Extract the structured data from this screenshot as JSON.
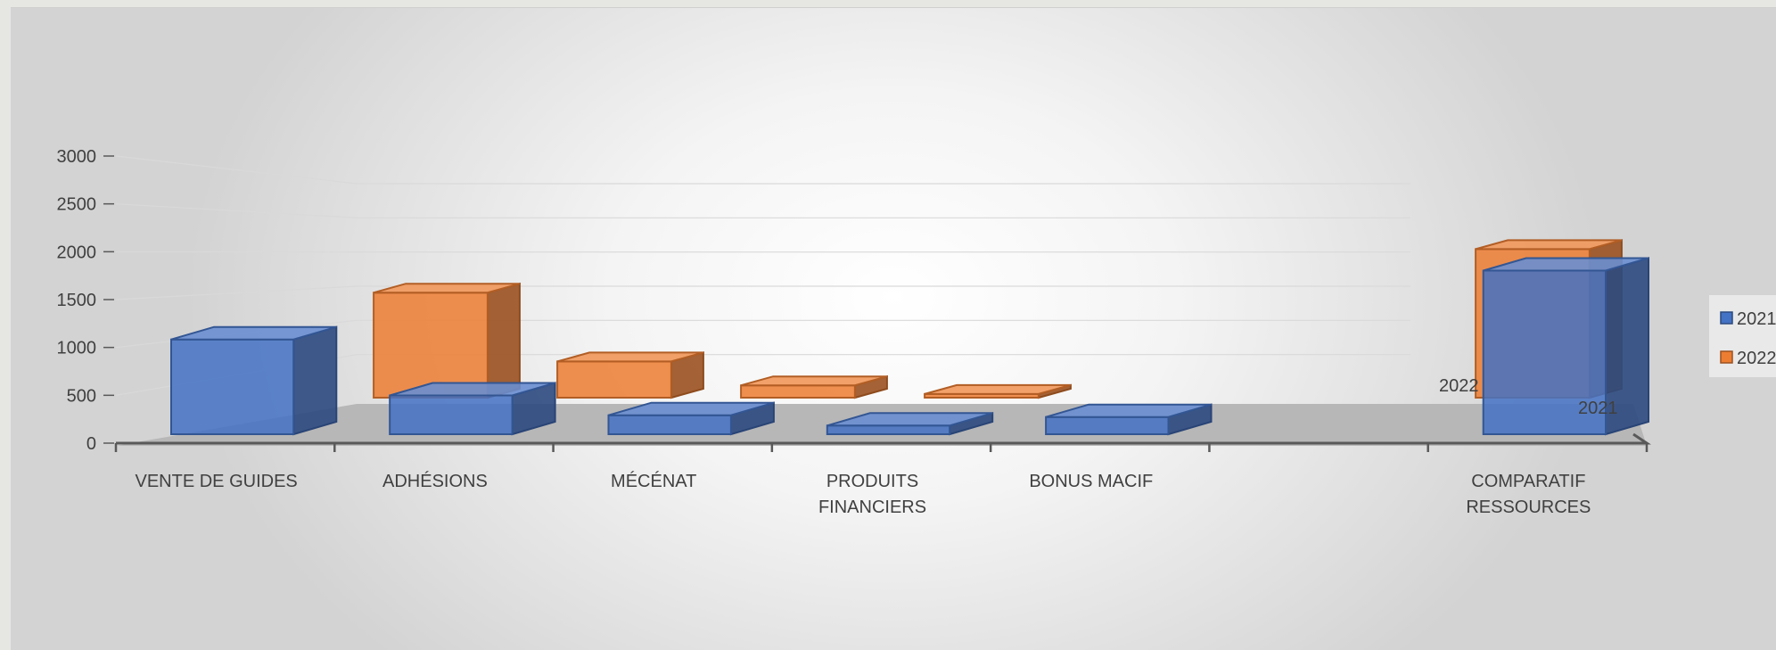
{
  "chart_data": {
    "type": "bar",
    "style": "3d-clustered-column",
    "categories": [
      "VENTE DE GUIDES",
      "ADHÉSIONS",
      "MÉCÉNAT",
      "PRODUITS FINANCIERS",
      "BONUS MACIF",
      "",
      "COMPARATIF RESSOURCES"
    ],
    "series": [
      {
        "name": "2021",
        "color": "#4472C4",
        "values": [
          1100,
          450,
          220,
          100,
          200,
          null,
          1900
        ]
      },
      {
        "name": "2022",
        "color": "#ED7D31",
        "values": [
          1450,
          500,
          170,
          50,
          null,
          null,
          2050
        ]
      }
    ],
    "yticks": [
      0,
      500,
      1000,
      1500,
      2000,
      2500,
      3000
    ],
    "ylim": [
      0,
      3000
    ],
    "gridlines": true,
    "legend": "right",
    "point_labels": [
      {
        "category": "COMPARATIF RESSOURCES",
        "series": "2022",
        "text": "2022"
      },
      {
        "category": "COMPARATIF RESSOURCES",
        "series": "2021",
        "text": "2021"
      }
    ]
  }
}
